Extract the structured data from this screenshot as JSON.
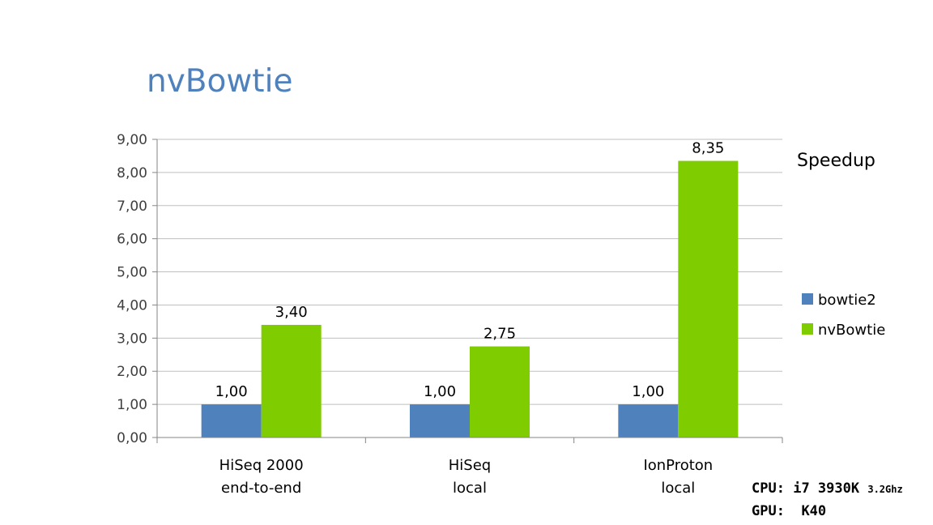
{
  "slide": {
    "title": "nvBowtie"
  },
  "chart_data": {
    "type": "bar",
    "title": "Speedup",
    "categories": [
      [
        "HiSeq 2000",
        "end-to-end"
      ],
      [
        "HiSeq",
        "local"
      ],
      [
        "IonProton",
        "local"
      ]
    ],
    "series": [
      {
        "name": "bowtie2",
        "values": [
          1.0,
          1.0,
          1.0
        ],
        "labels": [
          "1,00",
          "1,00",
          "1,00"
        ],
        "color": "#4f81bd"
      },
      {
        "name": "nvBowtie",
        "values": [
          3.4,
          2.75,
          8.35
        ],
        "labels": [
          "3,40",
          "2,75",
          "8,35"
        ],
        "color": "#7fcc00"
      }
    ],
    "yticks": [
      "0,00",
      "1,00",
      "2,00",
      "3,00",
      "4,00",
      "5,00",
      "6,00",
      "7,00",
      "8,00",
      "9,00"
    ],
    "ylim": [
      0,
      9
    ],
    "grid": true,
    "legend": "right"
  },
  "hardware": {
    "cpu_label": "CPU:",
    "cpu_value": "i7 3930K",
    "cpu_freq": "3.2Ghz",
    "gpu_label": "GPU:",
    "gpu_value": "K40"
  }
}
